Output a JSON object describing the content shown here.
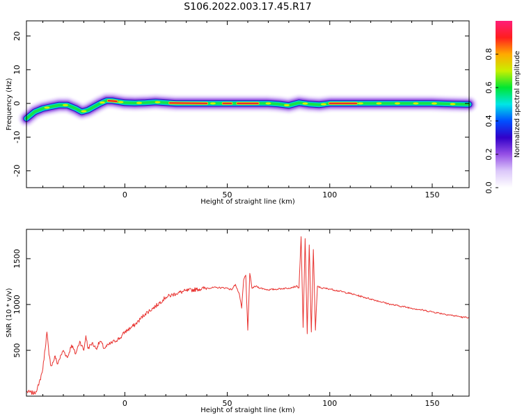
{
  "figure": {
    "title": "S106.2022.003.17.45.R17"
  },
  "chart_data": [
    {
      "type": "heatmap",
      "xlabel": "Height of straight line (km)",
      "ylabel": "Frequency (Hz)",
      "xlim": [
        -48,
        168
      ],
      "ylim": [
        -25,
        24.5
      ],
      "x_ticks": [
        0,
        50,
        100,
        150
      ],
      "y_ticks": [
        -20,
        -10,
        0,
        10,
        20
      ],
      "ridge": {
        "x": [
          -48,
          -44,
          -40,
          -36,
          -32,
          -28,
          -24,
          -21,
          -18,
          -15,
          -12,
          -9,
          -6,
          -3,
          0,
          5,
          10,
          15,
          20,
          25,
          30,
          40,
          50,
          55,
          60,
          70,
          75,
          80,
          85,
          90,
          95,
          100,
          110,
          120,
          130,
          140,
          150,
          160,
          168
        ],
        "y": [
          -4.5,
          -2.5,
          -1.5,
          -1.0,
          -0.5,
          -0.5,
          -1.5,
          -2.5,
          -2.0,
          -1.0,
          0.0,
          0.8,
          0.8,
          0.5,
          0.2,
          0.1,
          0.2,
          0.4,
          0.2,
          0.0,
          0.0,
          0.0,
          0.0,
          0.0,
          0.0,
          0.0,
          -0.2,
          -0.6,
          0.2,
          -0.2,
          -0.4,
          0.0,
          0.0,
          0.0,
          0.0,
          0.0,
          0.0,
          -0.2,
          -0.3
        ]
      },
      "colorbar": {
        "label": "Normalized spectral amplitude",
        "range": [
          0,
          1
        ],
        "ticks": [
          "0.0",
          "0.2",
          "0.4",
          "0.6",
          "0.8"
        ],
        "colormap": [
          "#ffffff",
          "#dcc8fa",
          "#9650e6",
          "#3200c8",
          "#0050ff",
          "#00e6e6",
          "#00e632",
          "#c8f000",
          "#ffaa00",
          "#ff1e1e",
          "#ff1e78"
        ]
      }
    },
    {
      "type": "line",
      "xlabel": "Height of straight line (km)",
      "ylabel": "SNR (10 * v/v)",
      "xlim": [
        -48,
        168
      ],
      "ylim": [
        0,
        1820
      ],
      "x_ticks": [
        0,
        50,
        100,
        150
      ],
      "y_ticks": [
        500,
        1000,
        1500
      ],
      "color": "#e8312e",
      "series": [
        {
          "x": [
            -48,
            -44,
            -42,
            -40,
            -38,
            -37,
            -36,
            -35,
            -34,
            -33,
            -30,
            -28,
            -26,
            -24,
            -22,
            -20,
            -19,
            -18,
            -16,
            -14,
            -12,
            -10,
            -8,
            -5,
            -2,
            0,
            5,
            10,
            15,
            20,
            25,
            30,
            35,
            40,
            45,
            50,
            52,
            54,
            56,
            57,
            58,
            59,
            60,
            61,
            62,
            64,
            66,
            70,
            75,
            80,
            82,
            84,
            85,
            86,
            87,
            88,
            89,
            90,
            91,
            92,
            93,
            94,
            96,
            100,
            110,
            120,
            130,
            140,
            150,
            160,
            163,
            165,
            168
          ],
          "y": [
            50,
            30,
            120,
            300,
            700,
            450,
            330,
            370,
            440,
            350,
            500,
            420,
            560,
            460,
            600,
            500,
            660,
            520,
            580,
            520,
            600,
            520,
            560,
            600,
            640,
            700,
            780,
            900,
            980,
            1080,
            1120,
            1150,
            1165,
            1180,
            1185,
            1180,
            1160,
            1220,
            1100,
            960,
            1270,
            1320,
            720,
            1340,
            1180,
            1200,
            1180,
            1160,
            1170,
            1180,
            1190,
            1200,
            1180,
            1740,
            750,
            1720,
            680,
            1650,
            700,
            1600,
            720,
            1200,
            1180,
            1170,
            1120,
            1060,
            1000,
            960,
            920,
            880,
            870,
            860,
            860
          ]
        }
      ]
    }
  ]
}
